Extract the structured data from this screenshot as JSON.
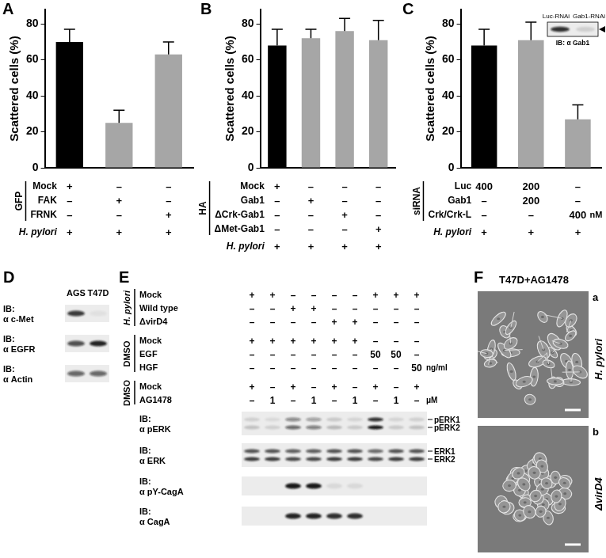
{
  "chart_data": [
    {
      "type": "bar",
      "title": "A",
      "y_label": "Scattered cells (%)",
      "categories": [
        null,
        null,
        null
      ],
      "values": [
        70,
        25,
        63
      ],
      "errors": [
        7,
        7,
        7
      ],
      "colors": [
        "#000000",
        "#a6a6a6",
        "#a6a6a6"
      ],
      "ylim": [
        0,
        88
      ],
      "yticks": [
        0,
        20,
        40,
        60,
        80
      ],
      "grid": false,
      "conditions": [
        {
          "group": "GFP",
          "rows": [
            {
              "label": "Mock",
              "marks": [
                "+",
                "–",
                "–"
              ]
            },
            {
              "label": "FAK",
              "marks": [
                "–",
                "+",
                "–"
              ]
            },
            {
              "label": "FRNK",
              "marks": [
                "–",
                "–",
                "+"
              ]
            }
          ]
        },
        {
          "rows": [
            {
              "label": "H. pylori",
              "marks": [
                "+",
                "+",
                "+"
              ]
            }
          ]
        }
      ]
    },
    {
      "type": "bar",
      "title": "B",
      "y_label": "Scattered cells (%)",
      "categories": [
        null,
        null,
        null,
        null
      ],
      "values": [
        68,
        72,
        76,
        71
      ],
      "errors": [
        9,
        5,
        7,
        11
      ],
      "colors": [
        "#000000",
        "#a6a6a6",
        "#a6a6a6",
        "#a6a6a6"
      ],
      "ylim": [
        0,
        88
      ],
      "yticks": [
        0,
        20,
        40,
        60,
        80
      ],
      "grid": false,
      "conditions": [
        {
          "group": "HA",
          "rows": [
            {
              "label": "Mock",
              "marks": [
                "+",
                "–",
                "–",
                "–"
              ]
            },
            {
              "label": "Gab1",
              "marks": [
                "–",
                "+",
                "–",
                "–"
              ]
            },
            {
              "label": "ΔCrk-Gab1",
              "marks": [
                "–",
                "–",
                "+",
                "–"
              ]
            },
            {
              "label": "ΔMet-Gab1",
              "marks": [
                "–",
                "–",
                "–",
                "+"
              ]
            }
          ]
        },
        {
          "rows": [
            {
              "label": "H. pylori",
              "marks": [
                "+",
                "+",
                "+",
                "+"
              ]
            }
          ]
        }
      ]
    },
    {
      "type": "bar",
      "title": "C",
      "y_label": "Scattered cells (%)",
      "categories": [
        null,
        null,
        null
      ],
      "values": [
        68,
        71,
        27
      ],
      "errors": [
        9,
        10,
        8
      ],
      "colors": [
        "#000000",
        "#a6a6a6",
        "#a6a6a6"
      ],
      "ylim": [
        0,
        88
      ],
      "yticks": [
        0,
        20,
        40,
        60,
        80
      ],
      "grid": false,
      "conditions": [
        {
          "group": "siRNA",
          "rows": [
            {
              "label": "Luc",
              "marks": [
                "400",
                "200",
                "–"
              ]
            },
            {
              "label": "Gab1",
              "marks": [
                "–",
                "200",
                "–"
              ]
            },
            {
              "label": "Crk/Crk-L",
              "marks": [
                "–",
                "–",
                "400"
              ],
              "unit": "nM"
            }
          ]
        },
        {
          "rows": [
            {
              "label": "H. pylori",
              "marks": [
                "+",
                "+",
                "+"
              ]
            }
          ]
        }
      ],
      "inset": {
        "lanes": [
          "Luc-RNAi",
          "Gab1-RNAi"
        ],
        "label": "IB: α Gab1",
        "bands": [
          0.85,
          0.12
        ]
      }
    }
  ],
  "panels": {
    "D": {
      "title": "D",
      "lanes": [
        "AGS",
        "T47D"
      ],
      "rows": [
        {
          "label": [
            "IB:",
            "α c-Met"
          ],
          "bands": [
            0.8,
            0.05
          ]
        },
        {
          "label": [
            "IB:",
            "α EGFR"
          ],
          "bands": [
            0.7,
            0.9
          ]
        },
        {
          "label": [
            "IB:",
            "α Actin"
          ],
          "bands": [
            0.6,
            0.6
          ]
        }
      ]
    },
    "E": {
      "title": "E",
      "conditions": [
        {
          "group": "H. pylori",
          "rows": [
            {
              "label": "Mock",
              "marks": [
                "+",
                "+",
                "–",
                "–",
                "–",
                "–",
                "+",
                "+",
                "+"
              ]
            },
            {
              "label": "Wild type",
              "marks": [
                "–",
                "–",
                "+",
                "+",
                "–",
                "–",
                "–",
                "–",
                "–"
              ]
            },
            {
              "label": "ΔvirD4",
              "marks": [
                "–",
                "–",
                "–",
                "–",
                "+",
                "+",
                "–",
                "–",
                "–"
              ]
            }
          ]
        },
        {
          "group": "DMSO",
          "rows": [
            {
              "label": "Mock",
              "marks": [
                "+",
                "+",
                "+",
                "+",
                "+",
                "+",
                "–",
                "–",
                "–"
              ]
            },
            {
              "label": "EGF",
              "marks": [
                "–",
                "–",
                "–",
                "–",
                "–",
                "–",
                "50",
                "50",
                "–"
              ]
            },
            {
              "label": "HGF",
              "marks": [
                "–",
                "–",
                "–",
                "–",
                "–",
                "–",
                "–",
                "–",
                "50"
              ],
              "unit": "ng/ml"
            }
          ]
        },
        {
          "group": "DMSO",
          "rows": [
            {
              "label": "Mock",
              "marks": [
                "+",
                "–",
                "+",
                "–",
                "+",
                "–",
                "+",
                "–",
                "+"
              ]
            },
            {
              "label": "AG1478",
              "marks": [
                "–",
                "1",
                "–",
                "1",
                "–",
                "1",
                "–",
                "1",
                "–"
              ],
              "unit": "μM"
            }
          ]
        }
      ],
      "blots": [
        {
          "label": [
            "IB:",
            "α pERK"
          ],
          "band_labels": [
            "pERK1",
            "pERK2"
          ],
          "bands": [
            [
              0.12,
              0.08,
              0.45,
              0.35,
              0.15,
              0.1,
              0.85,
              0.1,
              0.12
            ],
            [
              0.18,
              0.12,
              0.6,
              0.5,
              0.22,
              0.15,
              0.95,
              0.15,
              0.18
            ]
          ]
        },
        {
          "label": [
            "IB:",
            "α ERK"
          ],
          "band_labels": [
            "ERK1",
            "ERK2"
          ],
          "bands": [
            [
              0.7,
              0.7,
              0.65,
              0.65,
              0.7,
              0.7,
              0.6,
              0.7,
              0.7
            ],
            [
              0.8,
              0.8,
              0.75,
              0.75,
              0.8,
              0.8,
              0.75,
              0.8,
              0.8
            ]
          ]
        },
        {
          "label": [
            "IB:",
            "α pY-CagA"
          ],
          "bands": [
            [
              0,
              0,
              0.95,
              0.95,
              0.08,
              0.08,
              0,
              0,
              0
            ]
          ]
        },
        {
          "label": [
            "IB:",
            "α CagA"
          ],
          "bands": [
            [
              0,
              0,
              0.9,
              0.9,
              0.85,
              0.85,
              0,
              0,
              0
            ]
          ]
        }
      ]
    },
    "F": {
      "title": "F",
      "subtitle": "T47D+AG1478",
      "images": [
        {
          "tag": "a",
          "label": "H. pylori"
        },
        {
          "tag": "b",
          "label": "ΔvirD4"
        }
      ]
    }
  }
}
